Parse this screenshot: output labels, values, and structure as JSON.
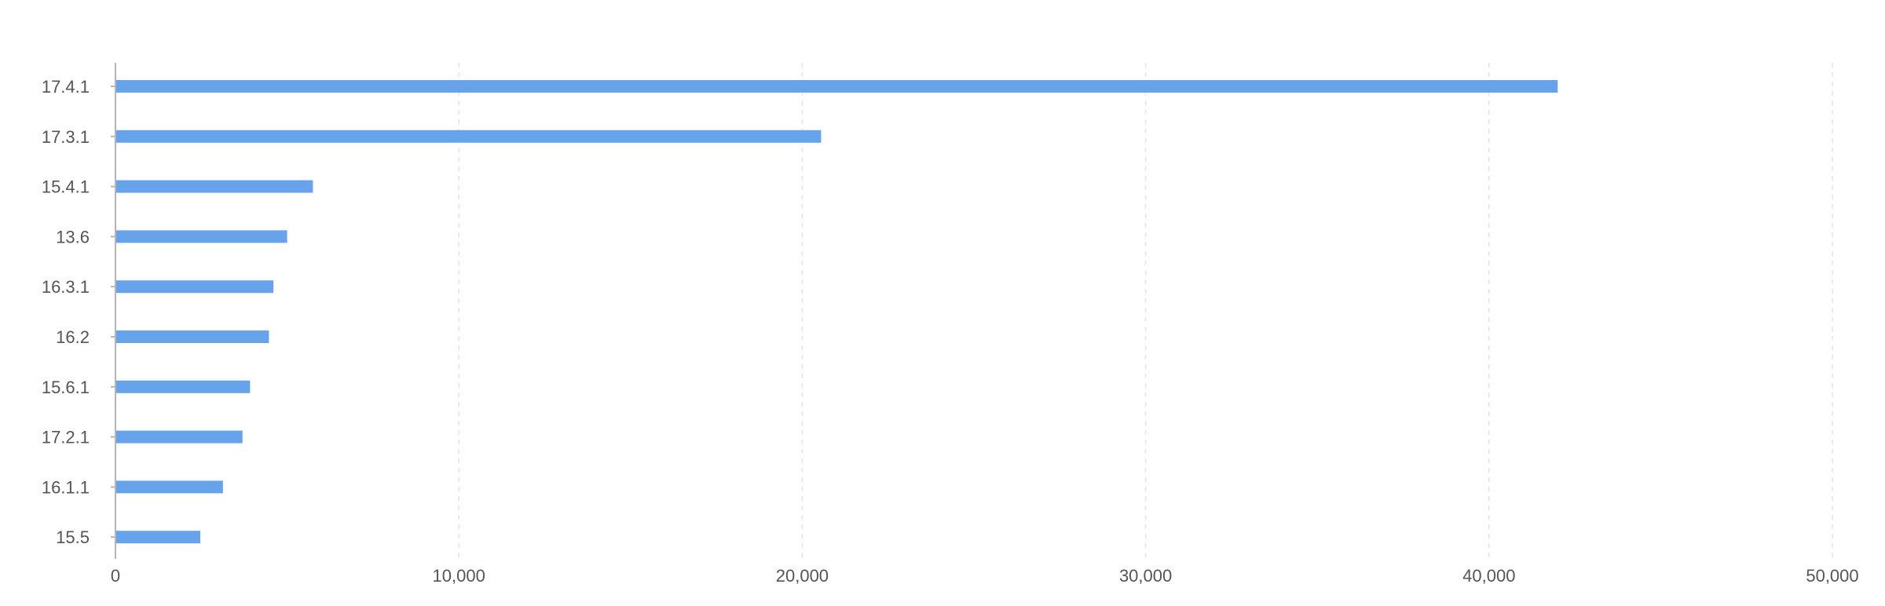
{
  "chart_data": {
    "type": "bar",
    "orientation": "horizontal",
    "title": "",
    "xlabel": "",
    "ylabel": "",
    "categories": [
      "17.4.1",
      "17.3.1",
      "15.4.1",
      "13.6",
      "16.3.1",
      "16.2",
      "15.6.1",
      "17.2.1",
      "16.1.1",
      "15.5"
    ],
    "values": [
      42000,
      20550,
      5750,
      5000,
      4600,
      4470,
      3920,
      3700,
      3130,
      2470
    ],
    "xlim": [
      0,
      50000
    ],
    "xticks": [
      0,
      10000,
      20000,
      30000,
      40000,
      50000
    ],
    "xtick_labels": [
      "0",
      "10,000",
      "20,000",
      "30,000",
      "40,000",
      "50,000"
    ],
    "grid": "vertical-dashed",
    "legend": "none",
    "bar_color": "#66a3ea"
  }
}
